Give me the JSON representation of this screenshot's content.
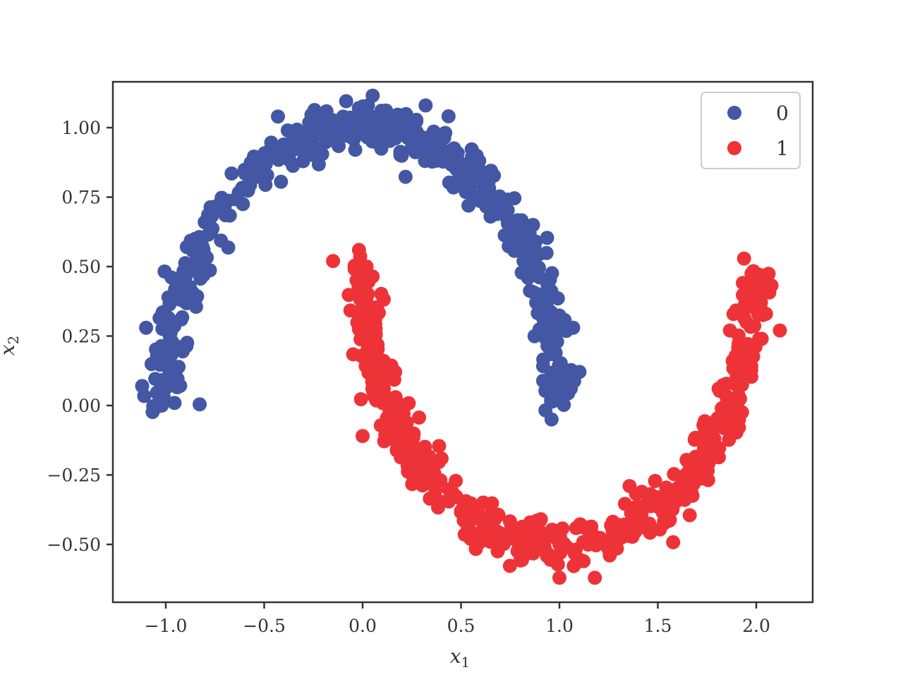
{
  "chart_data": {
    "type": "scatter",
    "title": "",
    "xlabel": "x",
    "xlabel_sub": "1",
    "ylabel": "x",
    "ylabel_sub": "2",
    "xlim": [
      -1.27,
      2.28
    ],
    "ylim": [
      -0.71,
      1.16
    ],
    "grid": false,
    "legend_position": "upper right",
    "x_ticks": [
      -1.0,
      -0.5,
      0.0,
      0.5,
      1.0,
      1.5,
      2.0
    ],
    "x_tick_labels": [
      "−1.0",
      "−0.5",
      "0.0",
      "0.5",
      "1.0",
      "1.5",
      "2.0"
    ],
    "y_ticks": [
      -0.5,
      -0.25,
      0.0,
      0.25,
      0.5,
      0.75,
      1.0
    ],
    "y_tick_labels": [
      "−0.50",
      "−0.25",
      "0.00",
      "0.25",
      "0.50",
      "0.75",
      "1.00"
    ],
    "generator": {
      "samples_per_class": 500,
      "noise": 0.045,
      "seed": 7
    },
    "series": [
      {
        "name": "0",
        "color": "#4357a5",
        "description": "upper moon: x = cos(t), y = sin(t), t in [0, pi], plus noise",
        "sample_points": [
          [
            -1.02,
            0.0
          ],
          [
            -0.98,
            0.25
          ],
          [
            -0.95,
            0.45
          ],
          [
            -0.85,
            0.6
          ],
          [
            -0.7,
            0.72
          ],
          [
            -0.55,
            0.85
          ],
          [
            -0.4,
            0.92
          ],
          [
            -0.2,
            0.99
          ],
          [
            0.0,
            1.0
          ],
          [
            0.2,
            0.98
          ],
          [
            0.4,
            0.92
          ],
          [
            0.55,
            0.83
          ],
          [
            0.7,
            0.7
          ],
          [
            0.82,
            0.55
          ],
          [
            0.9,
            0.4
          ],
          [
            0.95,
            0.25
          ],
          [
            0.98,
            0.1
          ],
          [
            0.96,
            -0.05
          ],
          [
            -1.12,
            0.07
          ],
          [
            0.32,
            1.08
          ],
          [
            -0.43,
            1.04
          ],
          [
            1.07,
            0.28
          ],
          [
            -1.1,
            0.28
          ]
        ]
      },
      {
        "name": "1",
        "color": "#ee3338",
        "description": "lower moon: x = 1 - cos(t), y = 0.5 - sin(t), t in [0, pi], plus noise",
        "sample_points": [
          [
            0.02,
            0.5
          ],
          [
            0.05,
            0.3
          ],
          [
            0.1,
            0.15
          ],
          [
            0.15,
            0.0
          ],
          [
            0.25,
            -0.15
          ],
          [
            0.35,
            -0.28
          ],
          [
            0.5,
            -0.38
          ],
          [
            0.7,
            -0.46
          ],
          [
            0.85,
            -0.5
          ],
          [
            1.0,
            -0.5
          ],
          [
            1.15,
            -0.48
          ],
          [
            1.3,
            -0.43
          ],
          [
            1.5,
            -0.33
          ],
          [
            1.65,
            -0.2
          ],
          [
            1.8,
            -0.05
          ],
          [
            1.9,
            0.1
          ],
          [
            1.95,
            0.3
          ],
          [
            2.0,
            0.45
          ],
          [
            2.12,
            0.27
          ],
          [
            -0.15,
            0.52
          ],
          [
            0.0,
            -0.11
          ],
          [
            1.18,
            -0.62
          ],
          [
            1.0,
            -0.62
          ]
        ]
      }
    ]
  },
  "legend": {
    "items": [
      {
        "label": "0",
        "color": "#4357a5"
      },
      {
        "label": "1",
        "color": "#ee3338"
      }
    ]
  },
  "colors": {
    "axis": "#333333",
    "legend_border": "#cccccc",
    "background": "#ffffff"
  }
}
